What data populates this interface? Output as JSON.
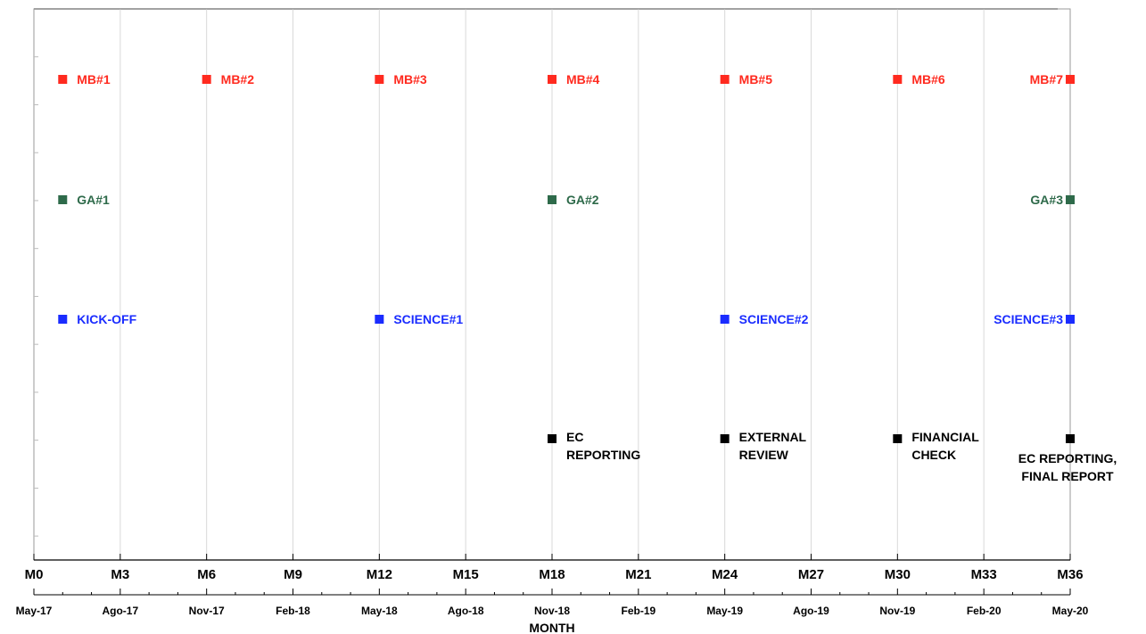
{
  "chart_data": {
    "type": "scatter",
    "xlabel": "MONTH",
    "xlim": [
      0,
      36
    ],
    "grid": "vertical",
    "x_ticks": [
      "M0",
      "M3",
      "M6",
      "M9",
      "M12",
      "M15",
      "M18",
      "M21",
      "M24",
      "M27",
      "M30",
      "M33",
      "M36"
    ],
    "x_dates": [
      "May-17",
      "Ago-17",
      "Nov-17",
      "Feb-18",
      "May-18",
      "Ago-18",
      "Nov-18",
      "Feb-19",
      "May-19",
      "Ago-19",
      "Nov-19",
      "Feb-20",
      "May-20"
    ],
    "series": [
      {
        "color": "#ff2a1f",
        "row": 1,
        "points": [
          {
            "x": 1,
            "label": [
              "MB#1"
            ]
          },
          {
            "x": 6,
            "label": [
              "MB#2"
            ]
          },
          {
            "x": 12,
            "label": [
              "MB#3"
            ]
          },
          {
            "x": 18,
            "label": [
              "MB#4"
            ]
          },
          {
            "x": 24,
            "label": [
              "MB#5"
            ]
          },
          {
            "x": 30,
            "label": [
              "MB#6"
            ]
          },
          {
            "x": 36,
            "label": [
              "MB#7"
            ],
            "label_side": "left"
          }
        ]
      },
      {
        "color": "#2e6a4a",
        "row": 2,
        "points": [
          {
            "x": 1,
            "label": [
              "GA#1"
            ]
          },
          {
            "x": 18,
            "label": [
              "GA#2"
            ]
          },
          {
            "x": 36,
            "label": [
              "GA#3"
            ],
            "label_side": "left"
          }
        ]
      },
      {
        "color": "#1a2cff",
        "row": 3,
        "points": [
          {
            "x": 1,
            "label": [
              "KICK-OFF"
            ]
          },
          {
            "x": 12,
            "label": [
              "SCIENCE#1"
            ]
          },
          {
            "x": 24,
            "label": [
              "SCIENCE#2"
            ]
          },
          {
            "x": 36,
            "label": [
              "SCIENCE#3"
            ],
            "label_side": "left"
          }
        ]
      },
      {
        "color": "#000000",
        "row": 4,
        "points": [
          {
            "x": 18,
            "label": [
              "EC",
              "REPORTING"
            ]
          },
          {
            "x": 24,
            "label": [
              "EXTERNAL",
              "REVIEW"
            ]
          },
          {
            "x": 30,
            "label": [
              "FINANCIAL",
              "CHECK"
            ]
          },
          {
            "x": 36,
            "label": [
              "EC REPORTING,",
              "FINAL REPORT"
            ],
            "label_side": "below"
          }
        ]
      }
    ]
  }
}
